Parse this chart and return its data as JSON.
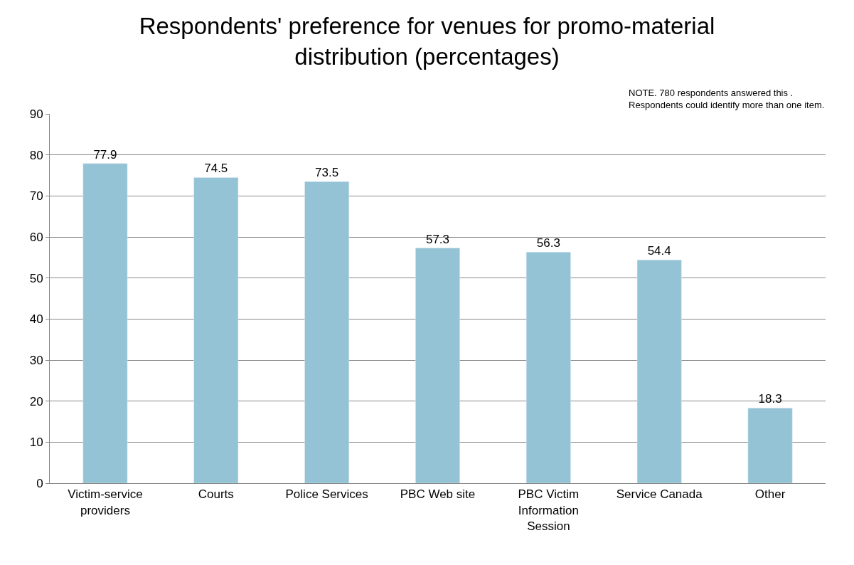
{
  "chart_data": {
    "type": "bar",
    "title": "Respondents' preference for venues for promo-material distribution (percentages)",
    "annotations": [
      "NOTE. 780 respondents answered this .\nRespondents could identify more than one item."
    ],
    "categories": [
      "Victim-service providers",
      "Courts",
      "Police Services",
      "PBC Web site",
      "PBC Victim Information Session",
      "Service Canada",
      "Other"
    ],
    "values": [
      77.9,
      74.5,
      73.5,
      57.3,
      56.3,
      54.4,
      18.3
    ],
    "color": "#93c3d4",
    "data_labels": true,
    "ylim": [
      0,
      90
    ],
    "yticks": [
      0,
      10,
      20,
      30,
      40,
      50,
      60,
      70,
      80,
      90
    ],
    "grid": "y",
    "legend": false
  }
}
